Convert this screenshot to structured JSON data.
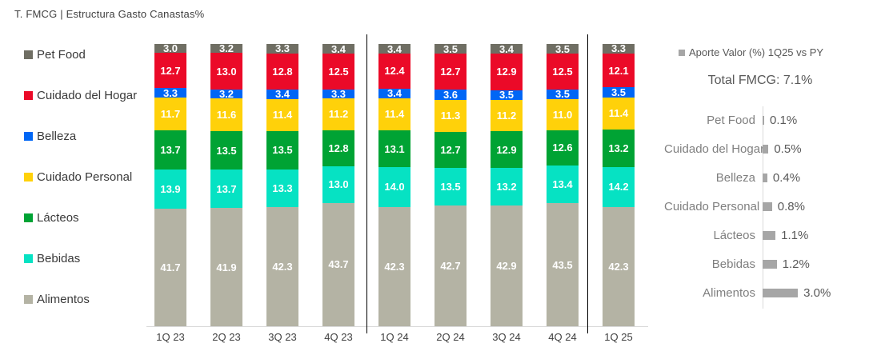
{
  "header": {
    "title": "T. FMCG | Estructura Gasto Canastas%"
  },
  "colors": {
    "pet_food": "#6f6e63",
    "cuidado_del_hogar": "#eb0a28",
    "belleza": "#0066f5",
    "cuidado_personal": "#ffd10a",
    "lacteos": "#00a334",
    "bebidas": "#06e2c3",
    "alimentos": "#b4b3a4",
    "aporte_bar": "#a6a6a6",
    "axis_line": "#d9d9d9",
    "divider": "#000000"
  },
  "chart_data": [
    {
      "type": "bar",
      "subtype": "stacked-columns-100",
      "title": "T. FMCG | Estructura Gasto Canastas%",
      "unit": "%",
      "categories": [
        "1Q 23",
        "2Q 23",
        "3Q 23",
        "4Q 23",
        "1Q 24",
        "2Q 24",
        "3Q 24",
        "4Q 24",
        "1Q 25"
      ],
      "stack_order": "bottom-to-top",
      "series": [
        {
          "name": "Alimentos",
          "color": "#b4b3a4",
          "values": [
            41.7,
            41.9,
            42.3,
            43.7,
            42.3,
            42.7,
            42.9,
            43.5,
            42.3
          ]
        },
        {
          "name": "Bebidas",
          "color": "#06e2c3",
          "values": [
            13.9,
            13.7,
            13.3,
            13.0,
            14.0,
            13.5,
            13.2,
            13.4,
            14.2
          ]
        },
        {
          "name": "Lácteos",
          "color": "#00a334",
          "values": [
            13.7,
            13.5,
            13.5,
            12.8,
            13.1,
            12.7,
            12.9,
            12.6,
            13.2
          ]
        },
        {
          "name": "Cuidado Personal",
          "color": "#ffd10a",
          "values": [
            11.7,
            11.6,
            11.4,
            11.2,
            11.4,
            11.3,
            11.2,
            11.0,
            11.4
          ]
        },
        {
          "name": "Belleza",
          "color": "#0066f5",
          "values": [
            3.3,
            3.2,
            3.4,
            3.3,
            3.4,
            3.6,
            3.5,
            3.5,
            3.5
          ]
        },
        {
          "name": "Cuidado del Hogar",
          "color": "#eb0a28",
          "values": [
            12.7,
            13.0,
            12.8,
            12.5,
            12.4,
            12.7,
            12.9,
            12.5,
            12.1
          ]
        },
        {
          "name": "Pet Food",
          "color": "#6f6e63",
          "values": [
            3.0,
            3.2,
            3.3,
            3.4,
            3.4,
            3.5,
            3.4,
            3.5,
            3.3
          ]
        }
      ],
      "legend_position": "left",
      "legend_order_top_to_bottom": [
        "Pet Food",
        "Cuidado del Hogar",
        "Belleza",
        "Cuidado Personal",
        "Lácteos",
        "Bebidas",
        "Alimentos"
      ],
      "group_dividers_after_category_index": [
        3,
        7
      ],
      "ylim": [
        0,
        100
      ],
      "grid": false
    },
    {
      "type": "bar",
      "subtype": "horizontal",
      "legend_label": "Aporte Valor (%) 1Q25 vs PY",
      "title": "Total FMCG: 7.1%",
      "unit": "%",
      "categories": [
        "Pet Food",
        "Cuidado del Hogar",
        "Belleza",
        "Cuidado Personal",
        "Lácteos",
        "Bebidas",
        "Alimentos"
      ],
      "values": [
        0.1,
        0.5,
        0.4,
        0.8,
        1.1,
        1.2,
        3.0
      ],
      "bar_color": "#a6a6a6",
      "xlim": [
        0,
        3.2
      ],
      "grid": false
    }
  ],
  "right_panel": {
    "legend_label": "Aporte Valor (%) 1Q25 vs PY",
    "total_label": "Total FMCG: 7.1%"
  }
}
